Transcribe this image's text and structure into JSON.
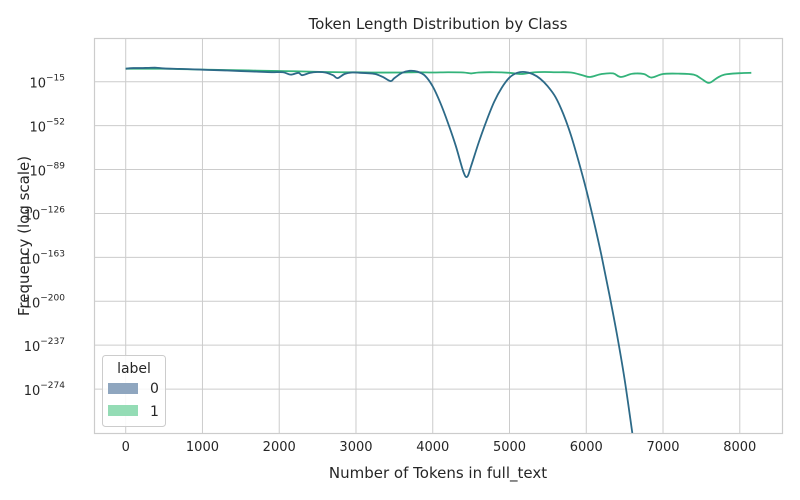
{
  "chart_data": {
    "type": "line",
    "title": "Token Length Distribution by Class",
    "xlabel": "Number of Tokens in full_text",
    "ylabel": "Frequency (log scale)",
    "x_scale": "linear",
    "y_scale": "log",
    "xlim": [
      -400,
      8550
    ],
    "ylim_exponent": [
      -311,
      21
    ],
    "x_ticks": [
      0,
      1000,
      2000,
      3000,
      4000,
      5000,
      6000,
      7000,
      8000
    ],
    "x_tick_labels": [
      "0",
      "1000",
      "2000",
      "3000",
      "4000",
      "5000",
      "6000",
      "7000",
      "8000"
    ],
    "y_tick_exponents": [
      -15,
      -52,
      -89,
      -126,
      -163,
      -200,
      -237,
      -274
    ],
    "y_tick_base": "10",
    "y_tick_powers": [
      "−15",
      "−52",
      "−89",
      "−126",
      "−163",
      "−200",
      "−237",
      "−274"
    ],
    "grid": true,
    "legend": {
      "title": "label",
      "placement": "bottom-left",
      "entries": [
        {
          "label": "0",
          "color": "#8fa6bf"
        },
        {
          "label": "1",
          "color": "#94dcb5"
        }
      ]
    },
    "series": [
      {
        "name": "0",
        "color": "#2d6a88",
        "x": [
          0,
          100,
          200,
          300,
          400,
          500,
          700,
          900,
          1100,
          1300,
          1500,
          1700,
          1900,
          2050,
          2150,
          2250,
          2300,
          2400,
          2500,
          2600,
          2700,
          2760,
          2850,
          2950,
          3050,
          3150,
          3250,
          3350,
          3450,
          3500,
          3600,
          3700,
          3800,
          3900,
          4000,
          4100,
          4200,
          4300,
          4400,
          4450,
          4500,
          4600,
          4700,
          4800,
          4900,
          5000,
          5100,
          5200,
          5300,
          5400,
          5500,
          5600,
          5700,
          5800,
          5900,
          6000,
          6100,
          6200,
          6300,
          6400,
          6500,
          6600
        ],
        "exponents": [
          -4,
          -3.5,
          -3.5,
          -3.3,
          -3.2,
          -3.8,
          -4.2,
          -4.6,
          -5.1,
          -5.5,
          -6.0,
          -6.5,
          -7.0,
          -7.0,
          -9.0,
          -7.5,
          -9.5,
          -7.5,
          -6.8,
          -7.2,
          -9.5,
          -12.0,
          -8.5,
          -7.2,
          -7.5,
          -7.8,
          -8.5,
          -11.0,
          -14.5,
          -12.0,
          -7.5,
          -5.8,
          -6.5,
          -10.0,
          -19.0,
          -33.0,
          -50.0,
          -69.0,
          -91.0,
          -95.0,
          -86.0,
          -66.0,
          -48.0,
          -32.0,
          -20.0,
          -11.5,
          -7.5,
          -6.8,
          -8.5,
          -12.5,
          -19.0,
          -28.0,
          -42.0,
          -60.0,
          -82.0,
          -106.0,
          -133.0,
          -162.0,
          -194.0,
          -228.0,
          -266.0,
          -311.0
        ]
      },
      {
        "name": "1",
        "color": "#33b37a",
        "x": [
          0,
          200,
          400,
          600,
          800,
          1000,
          1200,
          1400,
          1600,
          1800,
          2000,
          2200,
          2400,
          2600,
          2800,
          3000,
          3200,
          3400,
          3600,
          3800,
          4000,
          4200,
          4400,
          4500,
          4600,
          4800,
          5000,
          5150,
          5300,
          5450,
          5600,
          5800,
          5950,
          6050,
          6200,
          6350,
          6450,
          6600,
          6750,
          6850,
          7000,
          7200,
          7400,
          7500,
          7600,
          7700,
          7800,
          8000,
          8150
        ],
        "exponents": [
          -4.0,
          -4.0,
          -4.0,
          -4.2,
          -4.5,
          -4.8,
          -5.0,
          -5.2,
          -5.5,
          -5.8,
          -6.0,
          -6.2,
          -6.5,
          -6.8,
          -7.0,
          -7.0,
          -7.2,
          -7.3,
          -7.2,
          -7.0,
          -7.2,
          -7.0,
          -7.2,
          -8.0,
          -7.2,
          -7.0,
          -7.5,
          -8.5,
          -7.2,
          -6.8,
          -7.0,
          -7.2,
          -9.5,
          -11.0,
          -8.5,
          -8.0,
          -11.0,
          -8.3,
          -8.5,
          -11.5,
          -8.5,
          -8.2,
          -9.0,
          -12.5,
          -16.0,
          -12.0,
          -9.0,
          -7.8,
          -7.5
        ]
      }
    ]
  }
}
